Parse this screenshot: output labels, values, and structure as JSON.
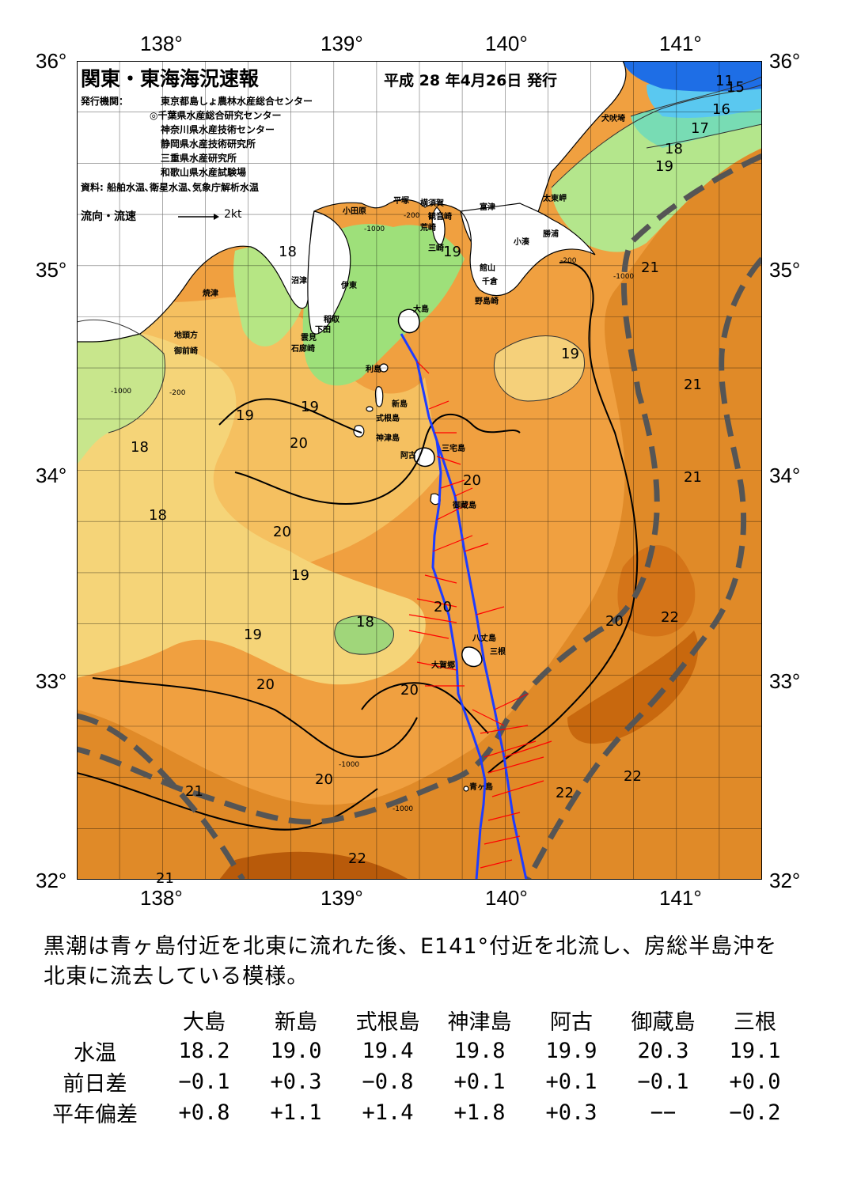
{
  "header": {
    "title": "関東・東海海況速報",
    "date": "平成 28 年4月26日 発行",
    "issuers_label": "発行機関：",
    "issuers": [
      "東京都島しょ農林水産総合センター",
      "◎千葉県水産総合研究センター",
      "神奈川県水産技術センター",
      "静岡県水産技術研究所",
      "三重県水産研究所",
      "和歌山県水産試験場"
    ],
    "source": "資料: 船舶水温､衛星水温､気象庁解析水温",
    "legend_label": "流向・流速",
    "legend_speed": "2kt"
  },
  "axes": {
    "lon_labels": [
      "138°",
      "139°",
      "140°",
      "141°"
    ],
    "lat_labels": [
      "36°",
      "35°",
      "34°",
      "33°",
      "32°"
    ]
  },
  "map": {
    "place_names": [
      "犬吠埼",
      "太東岬",
      "勝浦",
      "小湊",
      "富津",
      "横須賀",
      "観音崎",
      "荒崎",
      "三崎",
      "館山",
      "千倉",
      "野島崎",
      "平塚",
      "小田原",
      "沼津",
      "伊東",
      "焼津",
      "稲取",
      "下田",
      "雲見",
      "石廊崎",
      "地頭方",
      "御前崎",
      "大島",
      "利島",
      "新島",
      "式根島",
      "神津島",
      "阿古",
      "三宅島",
      "御蔵島",
      "八丈島",
      "三根",
      "大賀郷",
      "青ヶ島"
    ],
    "isotherm_labels": [
      "11",
      "15",
      "16",
      "17",
      "18",
      "19",
      "21",
      "19",
      "21",
      "21",
      "18",
      "19",
      "19",
      "19",
      "20",
      "20",
      "18",
      "18",
      "20",
      "19",
      "20",
      "18",
      "19",
      "20",
      "22",
      "20",
      "20",
      "22",
      "21",
      "20",
      "22",
      "22",
      "21"
    ],
    "depth_labels": [
      "-200",
      "-1000"
    ],
    "colors": {
      "land": "#ffffff",
      "temp_11": "#1e6ee6",
      "temp_15": "#5ac8f0",
      "temp_17": "#78dcb4",
      "temp_18": "#a0e678",
      "temp_19": "#f0f096",
      "temp_20": "#f5b450",
      "temp_21": "#ec9632",
      "temp_22": "#d27814",
      "temp_23": "#b45a0a",
      "kuroshio_axis": "#555555",
      "ship_track": "#1e3cff",
      "current_vectors": "#ff0000"
    }
  },
  "summary": "黒潮は青ヶ島付近を北東に流れた後、E141°付近を北流し、房総半島沖を北東に流去している模様。",
  "stations_table": {
    "columns": [
      "大島",
      "新島",
      "式根島",
      "神津島",
      "阿古",
      "御蔵島",
      "三根"
    ],
    "rows": [
      {
        "label": "水温",
        "values": [
          "18.2",
          "19.0",
          "19.4",
          "19.8",
          "19.9",
          "20.3",
          "19.1"
        ]
      },
      {
        "label": "前日差",
        "values": [
          "−0.1",
          "+0.3",
          "−0.8",
          "+0.1",
          "+0.1",
          "−0.1",
          "+0.0"
        ]
      },
      {
        "label": "平年偏差",
        "values": [
          "+0.8",
          "+1.1",
          "+1.4",
          "+1.8",
          "+0.3",
          "−−",
          "−0.2"
        ]
      }
    ]
  }
}
